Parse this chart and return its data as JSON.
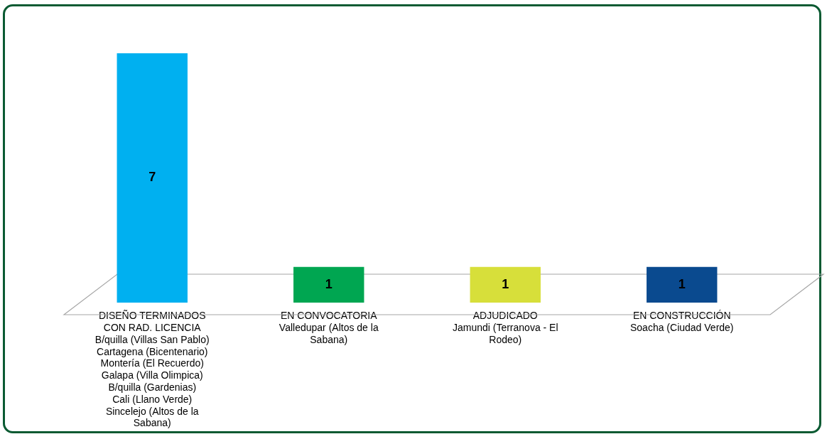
{
  "chart_data": {
    "type": "bar",
    "categories": [
      "DISEÑO TERMINADOS\nCON RAD. LICENCIA\nB/quilla (Villas San Pablo)\nCartagena (Bicentenario)\nMontería (El Recuerdo)\nGalapa (Villa Olimpica)\nB/quilla (Gardenias)\nCali (Llano Verde)\nSincelejo (Altos de la\nSabana)",
      "EN CONVOCATORIA\nValledupar (Altos de la\nSabana)",
      "ADJUDICADO\nJamundi (Terranova - El\nRodeo)",
      "EN CONSTRUCCIÓN\nSoacha (Ciudad Verde)"
    ],
    "values": [
      7,
      1,
      1,
      1
    ],
    "colors": [
      "#00b0f0",
      "#00a651",
      "#d7df3a",
      "#0a4a8f"
    ],
    "data_labels": true
  }
}
